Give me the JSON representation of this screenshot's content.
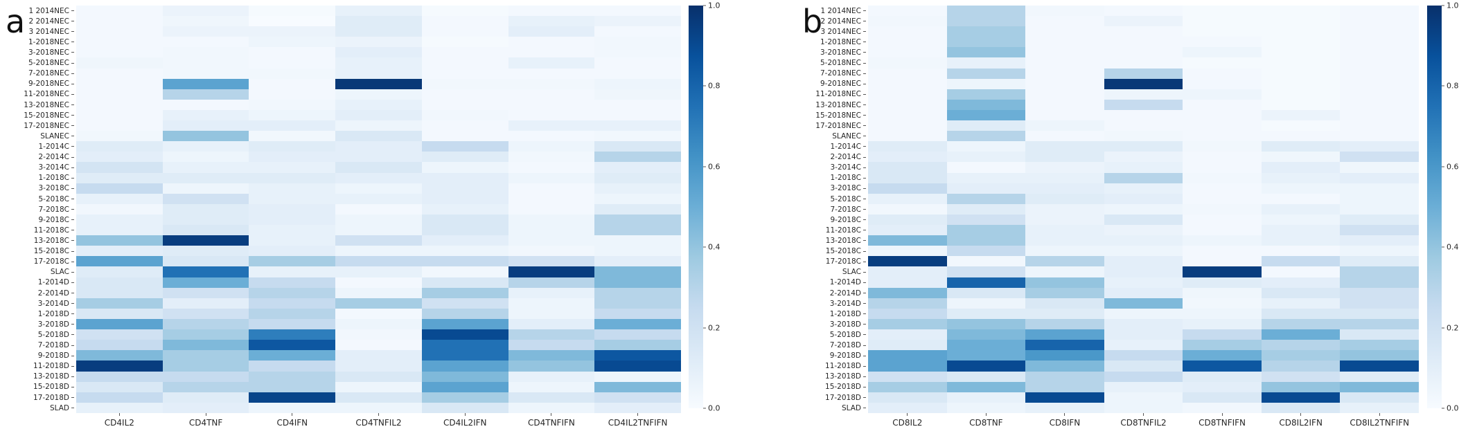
{
  "colormap": {
    "name": "Blues",
    "anchors": [
      {
        "t": 0.0,
        "color": "#f7fbff"
      },
      {
        "t": 0.125,
        "color": "#deebf7"
      },
      {
        "t": 0.25,
        "color": "#c6dbef"
      },
      {
        "t": 0.375,
        "color": "#9ecae1"
      },
      {
        "t": 0.5,
        "color": "#6baed6"
      },
      {
        "t": 0.625,
        "color": "#4292c6"
      },
      {
        "t": 0.75,
        "color": "#2171b5"
      },
      {
        "t": 0.875,
        "color": "#08519c"
      },
      {
        "t": 1.0,
        "color": "#08306b"
      }
    ]
  },
  "chart_data": [
    {
      "type": "heatmap",
      "panel_label": "a",
      "x_categories": [
        "CD4IL2",
        "CD4TNF",
        "CD4IFN",
        "CD4TNFIL2",
        "CD4IL2IFN",
        "CD4TNFIFN",
        "CD4IL2TNFIFN"
      ],
      "y_categories": [
        "1 2014NEC",
        "2 2014NEC",
        "3 2014NEC",
        "1-2018NEC",
        "3-2018NEC",
        "5-2018NEC",
        "7-2018NEC",
        "9-2018NEC",
        "11-2018NEC",
        "13-2018NEC",
        "15-2018NEC",
        "17-2018NEC",
        "SLANEC",
        "1-2014C",
        "2-2014C",
        "3-2014C",
        "1-2018C",
        "3-2018C",
        "5-2018C",
        "7-2018C",
        "9-2018C",
        "11-2018C",
        "13-2018C",
        "15-2018C",
        "17-2018C",
        "SLAC",
        "1-2014D",
        "2-2014D",
        "3-2014D",
        "1-2018D",
        "3-2018D",
        "5-2018D",
        "7-2018D",
        "9-2018D",
        "11-2018D",
        "13-2018D",
        "15-2018D",
        "17-2018D",
        "SLAD"
      ],
      "values": [
        [
          0.02,
          0.06,
          0.01,
          0.08,
          0.01,
          0.02,
          0.02
        ],
        [
          0.02,
          0.04,
          0.0,
          0.12,
          0.02,
          0.08,
          0.06
        ],
        [
          0.02,
          0.06,
          0.06,
          0.12,
          0.02,
          0.1,
          0.02
        ],
        [
          0.02,
          0.02,
          0.05,
          0.06,
          0.01,
          0.02,
          0.03
        ],
        [
          0.02,
          0.03,
          0.02,
          0.1,
          0.02,
          0.02,
          0.03
        ],
        [
          0.04,
          0.03,
          0.02,
          0.08,
          0.02,
          0.08,
          0.02
        ],
        [
          0.02,
          0.03,
          0.03,
          0.08,
          0.02,
          0.02,
          0.02
        ],
        [
          0.02,
          0.55,
          0.02,
          0.97,
          0.03,
          0.03,
          0.05
        ],
        [
          0.02,
          0.3,
          0.02,
          0.05,
          0.02,
          0.02,
          0.04
        ],
        [
          0.02,
          0.02,
          0.03,
          0.08,
          0.02,
          0.02,
          0.02
        ],
        [
          0.02,
          0.08,
          0.05,
          0.1,
          0.03,
          0.02,
          0.02
        ],
        [
          0.02,
          0.1,
          0.1,
          0.05,
          0.02,
          0.08,
          0.08
        ],
        [
          0.03,
          0.4,
          0.03,
          0.15,
          0.02,
          0.02,
          0.03
        ],
        [
          0.12,
          0.08,
          0.12,
          0.1,
          0.25,
          0.05,
          0.15
        ],
        [
          0.1,
          0.05,
          0.1,
          0.1,
          0.12,
          0.03,
          0.3
        ],
        [
          0.18,
          0.08,
          0.08,
          0.15,
          0.05,
          0.02,
          0.1
        ],
        [
          0.12,
          0.12,
          0.12,
          0.1,
          0.1,
          0.05,
          0.12
        ],
        [
          0.25,
          0.05,
          0.08,
          0.05,
          0.1,
          0.02,
          0.08
        ],
        [
          0.08,
          0.2,
          0.08,
          0.08,
          0.1,
          0.02,
          0.05
        ],
        [
          0.03,
          0.12,
          0.1,
          0.02,
          0.08,
          0.02,
          0.12
        ],
        [
          0.08,
          0.12,
          0.1,
          0.05,
          0.15,
          0.05,
          0.3
        ],
        [
          0.08,
          0.15,
          0.08,
          0.05,
          0.15,
          0.05,
          0.3
        ],
        [
          0.4,
          0.95,
          0.08,
          0.2,
          0.1,
          0.05,
          0.05
        ],
        [
          0.1,
          0.12,
          0.1,
          0.05,
          0.05,
          0.03,
          0.05
        ],
        [
          0.55,
          0.15,
          0.35,
          0.25,
          0.25,
          0.2,
          0.1
        ],
        [
          0.12,
          0.75,
          0.08,
          0.08,
          0.03,
          0.95,
          0.45
        ],
        [
          0.15,
          0.5,
          0.25,
          0.02,
          0.15,
          0.3,
          0.45
        ],
        [
          0.15,
          0.2,
          0.3,
          0.05,
          0.35,
          0.08,
          0.3
        ],
        [
          0.35,
          0.1,
          0.25,
          0.35,
          0.2,
          0.05,
          0.3
        ],
        [
          0.15,
          0.2,
          0.3,
          0.02,
          0.3,
          0.05,
          0.25
        ],
        [
          0.55,
          0.3,
          0.25,
          0.05,
          0.55,
          0.1,
          0.5
        ],
        [
          0.2,
          0.35,
          0.7,
          0.03,
          0.9,
          0.3,
          0.25
        ],
        [
          0.25,
          0.45,
          0.85,
          0.02,
          0.75,
          0.25,
          0.35
        ],
        [
          0.45,
          0.35,
          0.5,
          0.1,
          0.75,
          0.45,
          0.85
        ],
        [
          0.95,
          0.35,
          0.25,
          0.1,
          0.55,
          0.4,
          0.9
        ],
        [
          0.25,
          0.25,
          0.3,
          0.15,
          0.45,
          0.08,
          0.05
        ],
        [
          0.15,
          0.3,
          0.3,
          0.05,
          0.55,
          0.05,
          0.45
        ],
        [
          0.25,
          0.12,
          0.92,
          0.15,
          0.35,
          0.15,
          0.2
        ],
        [
          0.08,
          0.1,
          0.05,
          0.05,
          0.15,
          0.05,
          0.1
        ]
      ],
      "value_range": [
        0.0,
        1.0
      ],
      "colorbar_ticks": [
        "1.0",
        "0.8",
        "0.6",
        "0.4",
        "0.2",
        "0.0"
      ],
      "colormap": "Blues"
    },
    {
      "type": "heatmap",
      "panel_label": "b",
      "x_categories": [
        "CD8IL2",
        "CD8TNF",
        "CD8IFN",
        "CD8TNFIL2",
        "CD8TNFIFN",
        "CD8IL2IFN",
        "CD8IL2TNFIFN"
      ],
      "y_categories": [
        "1 2014NEC",
        "2 2014NEC",
        "3 2014NEC",
        "1-2018NEC",
        "3-2018NEC",
        "5-2018NEC",
        "7-2018NEC",
        "9-2018NEC",
        "11-2018NEC",
        "13-2018NEC",
        "15-2018NEC",
        "17-2018NEC",
        "SLANEC",
        "1-2014C",
        "2-2014C",
        "3-2014C",
        "1-2018C",
        "3-2018C",
        "5-2018C",
        "7-2018C",
        "9-2018C",
        "11-2018C",
        "13-2018C",
        "15-2018C",
        "17-2018C",
        "SLAC",
        "1-2014D",
        "2-2014D",
        "3-2014D",
        "1-2018D",
        "3-2018D",
        "5-2018D",
        "7-2018D",
        "9-2018D",
        "11-2018D",
        "13-2018D",
        "15-2018D",
        "17-2018D",
        "SLAD"
      ],
      "values": [
        [
          0.02,
          0.3,
          0.03,
          0.02,
          0.01,
          0.01,
          0.02
        ],
        [
          0.03,
          0.3,
          0.02,
          0.06,
          0.01,
          0.01,
          0.02
        ],
        [
          0.02,
          0.35,
          0.02,
          0.02,
          0.01,
          0.01,
          0.02
        ],
        [
          0.02,
          0.35,
          0.02,
          0.02,
          0.02,
          0.01,
          0.02
        ],
        [
          0.02,
          0.4,
          0.02,
          0.02,
          0.05,
          0.01,
          0.02
        ],
        [
          0.03,
          0.08,
          0.02,
          0.02,
          0.01,
          0.01,
          0.02
        ],
        [
          0.02,
          0.3,
          0.02,
          0.3,
          0.02,
          0.01,
          0.02
        ],
        [
          0.02,
          0.05,
          0.02,
          0.97,
          0.02,
          0.01,
          0.02
        ],
        [
          0.02,
          0.35,
          0.02,
          0.05,
          0.05,
          0.01,
          0.02
        ],
        [
          0.02,
          0.45,
          0.02,
          0.25,
          0.02,
          0.01,
          0.02
        ],
        [
          0.02,
          0.5,
          0.02,
          0.02,
          0.02,
          0.06,
          0.02
        ],
        [
          0.02,
          0.12,
          0.05,
          0.02,
          0.02,
          0.01,
          0.02
        ],
        [
          0.02,
          0.3,
          0.02,
          0.03,
          0.02,
          0.02,
          0.02
        ],
        [
          0.12,
          0.05,
          0.12,
          0.12,
          0.03,
          0.12,
          0.1
        ],
        [
          0.1,
          0.08,
          0.12,
          0.06,
          0.02,
          0.04,
          0.2
        ],
        [
          0.15,
          0.02,
          0.06,
          0.08,
          0.02,
          0.1,
          0.04
        ],
        [
          0.15,
          0.08,
          0.08,
          0.3,
          0.03,
          0.08,
          0.1
        ],
        [
          0.25,
          0.1,
          0.1,
          0.08,
          0.02,
          0.05,
          0.05
        ],
        [
          0.08,
          0.3,
          0.12,
          0.1,
          0.02,
          0.02,
          0.05
        ],
        [
          0.03,
          0.12,
          0.06,
          0.05,
          0.03,
          0.08,
          0.05
        ],
        [
          0.12,
          0.2,
          0.06,
          0.15,
          0.02,
          0.05,
          0.12
        ],
        [
          0.1,
          0.35,
          0.08,
          0.06,
          0.02,
          0.08,
          0.2
        ],
        [
          0.45,
          0.35,
          0.08,
          0.08,
          0.05,
          0.08,
          0.1
        ],
        [
          0.05,
          0.25,
          0.05,
          0.05,
          0.02,
          0.02,
          0.05
        ],
        [
          0.95,
          0.03,
          0.3,
          0.1,
          0.02,
          0.25,
          0.12
        ],
        [
          0.1,
          0.2,
          0.05,
          0.1,
          0.95,
          0.02,
          0.3
        ],
        [
          0.1,
          0.8,
          0.4,
          0.08,
          0.12,
          0.1,
          0.3
        ],
        [
          0.45,
          0.15,
          0.35,
          0.1,
          0.04,
          0.15,
          0.2
        ],
        [
          0.3,
          0.05,
          0.15,
          0.45,
          0.03,
          0.08,
          0.2
        ],
        [
          0.25,
          0.12,
          0.12,
          0.05,
          0.05,
          0.15,
          0.15
        ],
        [
          0.35,
          0.4,
          0.3,
          0.1,
          0.08,
          0.3,
          0.3
        ],
        [
          0.1,
          0.45,
          0.55,
          0.1,
          0.25,
          0.5,
          0.15
        ],
        [
          0.12,
          0.5,
          0.8,
          0.08,
          0.35,
          0.3,
          0.35
        ],
        [
          0.55,
          0.5,
          0.6,
          0.25,
          0.5,
          0.35,
          0.4
        ],
        [
          0.55,
          0.9,
          0.45,
          0.15,
          0.85,
          0.3,
          0.9
        ],
        [
          0.2,
          0.15,
          0.3,
          0.25,
          0.12,
          0.2,
          0.12
        ],
        [
          0.35,
          0.45,
          0.3,
          0.08,
          0.1,
          0.4,
          0.45
        ],
        [
          0.15,
          0.08,
          0.9,
          0.05,
          0.15,
          0.9,
          0.15
        ],
        [
          0.1,
          0.05,
          0.08,
          0.05,
          0.03,
          0.15,
          0.08
        ]
      ],
      "value_range": [
        0.0,
        1.0
      ],
      "colorbar_ticks": [
        "1.0",
        "0.8",
        "0.6",
        "0.4",
        "0.2",
        "0.0"
      ],
      "colormap": "Blues"
    }
  ]
}
